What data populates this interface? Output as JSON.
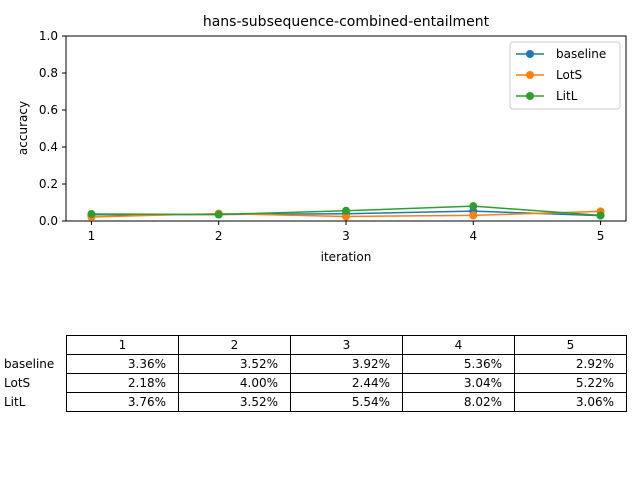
{
  "chart_data": {
    "type": "line",
    "title": "hans-subsequence-combined-entailment",
    "xlabel": "iteration",
    "ylabel": "accuracy",
    "x": [
      1,
      2,
      3,
      4,
      5
    ],
    "xticks": [
      "1",
      "2",
      "3",
      "4",
      "5"
    ],
    "ylim": [
      0,
      1.0
    ],
    "yticks": [
      "0.0",
      "0.2",
      "0.4",
      "0.6",
      "0.8",
      "1.0"
    ],
    "grid": false,
    "legend_position": "top-right",
    "series": [
      {
        "name": "baseline",
        "color": "#1f77b4",
        "values": [
          0.0336,
          0.0352,
          0.0392,
          0.0536,
          0.0292
        ]
      },
      {
        "name": "LotS",
        "color": "#ff7f0e",
        "values": [
          0.0218,
          0.04,
          0.0244,
          0.0304,
          0.0522
        ]
      },
      {
        "name": "LitL",
        "color": "#2ca02c",
        "values": [
          0.0376,
          0.0352,
          0.0554,
          0.0802,
          0.0306
        ]
      }
    ]
  },
  "table": {
    "columns": [
      "1",
      "2",
      "3",
      "4",
      "5"
    ],
    "rows": [
      {
        "label": "baseline",
        "cells": [
          "3.36%",
          "3.52%",
          "3.92%",
          "5.36%",
          "2.92%"
        ]
      },
      {
        "label": "LotS",
        "cells": [
          "2.18%",
          "4.00%",
          "2.44%",
          "3.04%",
          "5.22%"
        ]
      },
      {
        "label": "LitL",
        "cells": [
          "3.76%",
          "3.52%",
          "5.54%",
          "8.02%",
          "3.06%"
        ]
      }
    ]
  }
}
